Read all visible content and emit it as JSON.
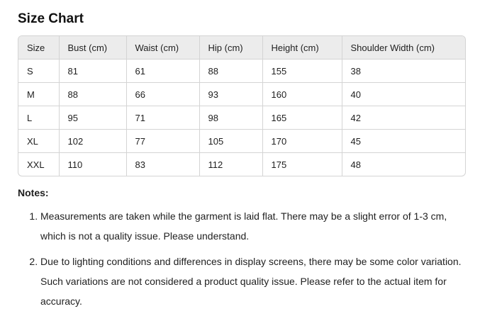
{
  "title": "Size Chart",
  "table": {
    "headers": [
      "Size",
      "Bust (cm)",
      "Waist (cm)",
      "Hip (cm)",
      "Height (cm)",
      "Shoulder Width (cm)"
    ],
    "rows": [
      [
        "S",
        "81",
        "61",
        "88",
        "155",
        "38"
      ],
      [
        "M",
        "88",
        "66",
        "93",
        "160",
        "40"
      ],
      [
        "L",
        "95",
        "71",
        "98",
        "165",
        "42"
      ],
      [
        "XL",
        "102",
        "77",
        "105",
        "170",
        "45"
      ],
      [
        "XXL",
        "110",
        "83",
        "112",
        "175",
        "48"
      ]
    ]
  },
  "notes": {
    "title": "Notes:",
    "items": [
      "Measurements are taken while the garment is laid flat. There may be a slight error of 1-3 cm, which is not a quality issue. Please understand.",
      "Due to lighting conditions and differences in display screens, there may be some color variation. Such variations are not considered a product quality issue. Please refer to the actual item for accuracy."
    ]
  }
}
